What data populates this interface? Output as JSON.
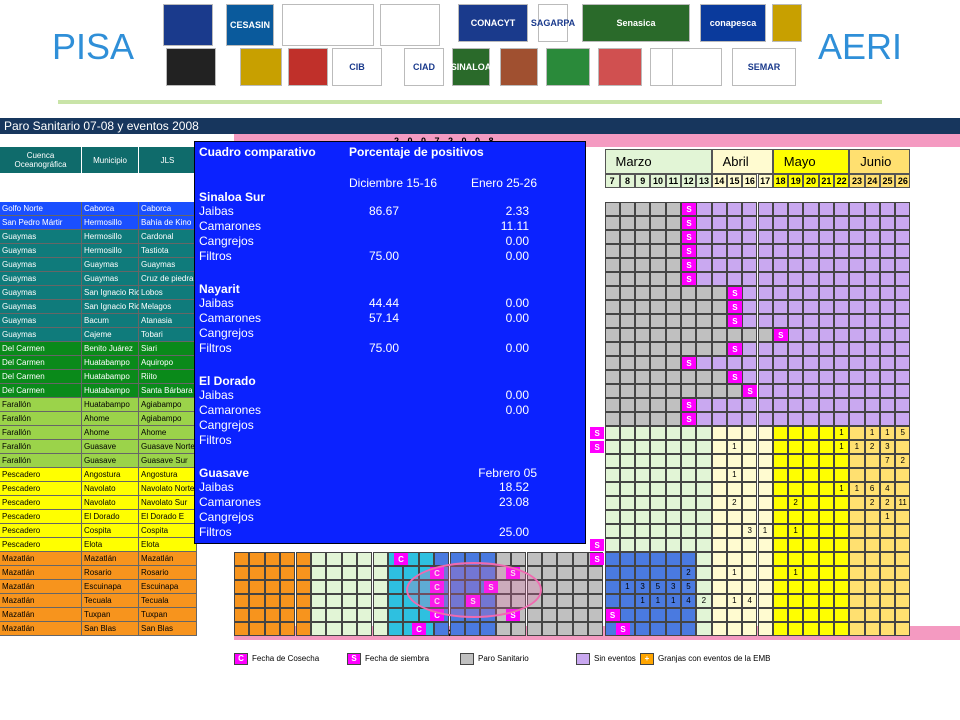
{
  "header": {
    "left_brand": "PISA",
    "right_brand": "AERI"
  },
  "logos": [
    {
      "name": "logo-1",
      "text": ""
    },
    {
      "name": "logo-cesasin",
      "text": "CESASIN"
    },
    {
      "name": "logo-3",
      "text": ""
    },
    {
      "name": "logo-4",
      "text": ""
    },
    {
      "name": "logo-conacyt",
      "text": "CONACYT"
    },
    {
      "name": "logo-sagarpa",
      "text": "SAGARPA"
    },
    {
      "name": "logo-senasica",
      "text": "Senasica"
    },
    {
      "name": "logo-conapesca",
      "text": "conapesca"
    },
    {
      "name": "logo-9",
      "text": ""
    },
    {
      "name": "logo-10",
      "text": ""
    },
    {
      "name": "logo-11",
      "text": ""
    },
    {
      "name": "logo-12",
      "text": ""
    },
    {
      "name": "logo-cib",
      "text": "CIB"
    },
    {
      "name": "logo-ciad",
      "text": "CIAD"
    },
    {
      "name": "logo-sinaloa",
      "text": "SINALOA"
    },
    {
      "name": "logo-16",
      "text": ""
    },
    {
      "name": "logo-17",
      "text": ""
    },
    {
      "name": "logo-18",
      "text": ""
    },
    {
      "name": "logo-19",
      "text": ""
    },
    {
      "name": "logo-20",
      "text": ""
    },
    {
      "name": "logo-semar",
      "text": "SEMAR"
    }
  ],
  "sheet": {
    "title": "Paro Sanitario 07-08 y eventos 2008",
    "year_label": "2 0 0 7 2 0 0 8",
    "col_headers": [
      "Cuenca Oceanográfica",
      "Municipio",
      "JLS"
    ],
    "months": [
      {
        "label": "Marzo",
        "bg": "#e2f5d6"
      },
      {
        "label": "Abril",
        "bg": "#fffbd0"
      },
      {
        "label": "Mayo",
        "bg": "#ffff00"
      },
      {
        "label": "Junio",
        "bg": "#ffe070"
      }
    ],
    "weeks": [
      "7",
      "8",
      "9",
      "10",
      "11",
      "12",
      "13",
      "14",
      "15",
      "16",
      "17",
      "18",
      "19",
      "20",
      "21",
      "22",
      "23",
      "24",
      "25",
      "26"
    ],
    "rows": [
      {
        "c": "Golfo Norte",
        "m": "Caborca",
        "j": "Caborca",
        "color": "#1a4fff",
        "tc": "#fff"
      },
      {
        "c": "San Pedro Mártir",
        "m": "Hermosillo",
        "j": "Bahía de Kino",
        "color": "#1a4fff",
        "tc": "#fff"
      },
      {
        "c": "Guaymas",
        "m": "Hermosillo",
        "j": "Cardonal",
        "color": "#0f7b7b",
        "tc": "#fff"
      },
      {
        "c": "Guaymas",
        "m": "Hermosillo",
        "j": "Tastiota",
        "color": "#0f7b7b",
        "tc": "#fff"
      },
      {
        "c": "Guaymas",
        "m": "Guaymas",
        "j": "Guaymas",
        "color": "#0f7b7b",
        "tc": "#fff"
      },
      {
        "c": "Guaymas",
        "m": "Guaymas",
        "j": "Cruz de piedra",
        "color": "#0f7b7b",
        "tc": "#fff"
      },
      {
        "c": "Guaymas",
        "m": "San Ignacio Rio",
        "j": "Lobos",
        "color": "#0f7b7b",
        "tc": "#fff"
      },
      {
        "c": "Guaymas",
        "m": "San Ignacio Rio",
        "j": "Melagos",
        "color": "#0f7b7b",
        "tc": "#fff"
      },
      {
        "c": "Guaymas",
        "m": "Bacum",
        "j": "Atanasia",
        "color": "#0f7b7b",
        "tc": "#fff"
      },
      {
        "c": "Guaymas",
        "m": "Cajeme",
        "j": "Tobari",
        "color": "#0f7b7b",
        "tc": "#fff"
      },
      {
        "c": "Del Carmen",
        "m": "Benito Juárez",
        "j": "Siari",
        "color": "#0a8a1a",
        "tc": "#fff"
      },
      {
        "c": "Del Carmen",
        "m": "Huatabampo",
        "j": "Aquiropo",
        "color": "#0a8a1a",
        "tc": "#fff"
      },
      {
        "c": "Del Carmen",
        "m": "Huatabampo",
        "j": "Riito",
        "color": "#0a8a1a",
        "tc": "#fff"
      },
      {
        "c": "Del Carmen",
        "m": "Huatabampo",
        "j": "Santa Bárbara",
        "color": "#0a8a1a",
        "tc": "#fff"
      },
      {
        "c": "Farallón",
        "m": "Huatabampo",
        "j": "Agiabampo",
        "color": "#9bd34a",
        "tc": "#000"
      },
      {
        "c": "Farallón",
        "m": "Ahome",
        "j": "Agiabampo",
        "color": "#9bd34a",
        "tc": "#000"
      },
      {
        "c": "Farallón",
        "m": "Ahome",
        "j": "Ahome",
        "color": "#9bd34a",
        "tc": "#000"
      },
      {
        "c": "Farallón",
        "m": "Guasave",
        "j": "Guasave Norte",
        "color": "#9bd34a",
        "tc": "#000"
      },
      {
        "c": "Farallón",
        "m": "Guasave",
        "j": "Guasave Sur",
        "color": "#9bd34a",
        "tc": "#000"
      },
      {
        "c": "Pescadero",
        "m": "Angostura",
        "j": "Angostura",
        "color": "#ffff00",
        "tc": "#000"
      },
      {
        "c": "Pescadero",
        "m": "Navolato",
        "j": "Navolato Norte",
        "color": "#ffff00",
        "tc": "#000"
      },
      {
        "c": "Pescadero",
        "m": "Navolato",
        "j": "Navolato Sur",
        "color": "#ffff00",
        "tc": "#000"
      },
      {
        "c": "Pescadero",
        "m": "El Dorado",
        "j": "El Dorado E",
        "color": "#ffff00",
        "tc": "#000"
      },
      {
        "c": "Pescadero",
        "m": "Cospita",
        "j": "Cospita",
        "color": "#ffff00",
        "tc": "#000"
      },
      {
        "c": "Pescadero",
        "m": "Elota",
        "j": "Elota",
        "color": "#ffff00",
        "tc": "#000"
      },
      {
        "c": "Mazatlán",
        "m": "Mazatlán",
        "j": "Mazatlán",
        "color": "#f7941d",
        "tc": "#000"
      },
      {
        "c": "Mazatlán",
        "m": "Rosario",
        "j": "Rosario",
        "color": "#f7941d",
        "tc": "#000"
      },
      {
        "c": "Mazatlán",
        "m": "Escuinapa",
        "j": "Escuinapa",
        "color": "#f7941d",
        "tc": "#000"
      },
      {
        "c": "Mazatlán",
        "m": "Tecuala",
        "j": "Tecuala",
        "color": "#f7941d",
        "tc": "#000"
      },
      {
        "c": "Mazatlán",
        "m": "Tuxpan",
        "j": "Tuxpan",
        "color": "#f7941d",
        "tc": "#000"
      },
      {
        "c": "Mazatlán",
        "m": "San Blas",
        "j": "San Blas",
        "color": "#f7941d",
        "tc": "#000"
      }
    ],
    "marks": [
      {
        "r": 0,
        "w": 5,
        "t": "S"
      },
      {
        "r": 1,
        "w": 5,
        "t": "S"
      },
      {
        "r": 2,
        "w": 5,
        "t": "S"
      },
      {
        "r": 3,
        "w": 5,
        "t": "S"
      },
      {
        "r": 4,
        "w": 5,
        "t": "S"
      },
      {
        "r": 5,
        "w": 5,
        "t": "S"
      },
      {
        "r": 6,
        "w": 8,
        "t": "S"
      },
      {
        "r": 7,
        "w": 8,
        "t": "S"
      },
      {
        "r": 8,
        "w": 8,
        "t": "S"
      },
      {
        "r": 9,
        "w": 11,
        "t": "S"
      },
      {
        "r": 10,
        "w": 8,
        "t": "S"
      },
      {
        "r": 11,
        "w": 5,
        "t": "S"
      },
      {
        "r": 12,
        "w": 8,
        "t": "S"
      },
      {
        "r": 13,
        "w": 9,
        "t": "S"
      },
      {
        "r": 14,
        "w": 5,
        "t": "S"
      },
      {
        "r": 15,
        "w": 5,
        "t": "S"
      },
      {
        "r": 16,
        "w": -1,
        "t": "S"
      },
      {
        "r": 17,
        "w": -1,
        "t": "S"
      },
      {
        "r": 24,
        "w": -1,
        "t": "S"
      },
      {
        "r": 25,
        "w": -1,
        "t": "S"
      },
      {
        "r": 29,
        "w": 0,
        "t": "S"
      }
    ],
    "numbers": [
      {
        "r": 16,
        "w": 15,
        "t": "1"
      },
      {
        "r": 16,
        "w": 17,
        "t": "1"
      },
      {
        "r": 16,
        "w": 18,
        "t": "1"
      },
      {
        "r": 16,
        "w": 19,
        "t": "5"
      },
      {
        "r": 17,
        "w": 8,
        "t": "1"
      },
      {
        "r": 17,
        "w": 15,
        "t": "1"
      },
      {
        "r": 17,
        "w": 16,
        "t": "1"
      },
      {
        "r": 17,
        "w": 17,
        "t": "2"
      },
      {
        "r": 17,
        "w": 18,
        "t": "3"
      },
      {
        "r": 18,
        "w": 18,
        "t": "7"
      },
      {
        "r": 18,
        "w": 19,
        "t": "2"
      },
      {
        "r": 19,
        "w": 8,
        "t": "1"
      },
      {
        "r": 20,
        "w": 15,
        "t": "1"
      },
      {
        "r": 20,
        "w": 16,
        "t": "1"
      },
      {
        "r": 20,
        "w": 17,
        "t": "6"
      },
      {
        "r": 20,
        "w": 18,
        "t": "4"
      },
      {
        "r": 21,
        "w": 8,
        "t": "2"
      },
      {
        "r": 21,
        "w": 12,
        "t": "2"
      },
      {
        "r": 21,
        "w": 17,
        "t": "2"
      },
      {
        "r": 21,
        "w": 18,
        "t": "2"
      },
      {
        "r": 21,
        "w": 19,
        "t": "11"
      },
      {
        "r": 22,
        "w": 18,
        "t": "1"
      },
      {
        "r": 23,
        "w": 9,
        "t": "3"
      },
      {
        "r": 23,
        "w": 10,
        "t": "1"
      },
      {
        "r": 23,
        "w": 12,
        "t": "1"
      },
      {
        "r": 26,
        "w": 5,
        "t": "2"
      },
      {
        "r": 26,
        "w": 8,
        "t": "1"
      },
      {
        "r": 26,
        "w": 12,
        "t": "1"
      },
      {
        "r": 27,
        "w": 1,
        "t": "1"
      },
      {
        "r": 27,
        "w": 2,
        "t": "3"
      },
      {
        "r": 27,
        "w": 3,
        "t": "5"
      },
      {
        "r": 27,
        "w": 4,
        "t": "3"
      },
      {
        "r": 27,
        "w": 5,
        "t": "5"
      },
      {
        "r": 28,
        "w": 2,
        "t": "1"
      },
      {
        "r": 28,
        "w": 3,
        "t": "1"
      },
      {
        "r": 28,
        "w": 4,
        "t": "1"
      },
      {
        "r": 28,
        "w": 5,
        "t": "4"
      },
      {
        "r": 28,
        "w": 6,
        "t": "2"
      },
      {
        "r": 28,
        "w": 8,
        "t": "1"
      },
      {
        "r": 28,
        "w": 9,
        "t": "4"
      }
    ]
  },
  "overlay": {
    "title": "Cuadro comparativo",
    "subtitle": "Porcentaje de positivos",
    "col1": "Diciembre 15-16",
    "col2": "Enero 25-26",
    "sections": [
      {
        "name": "Sinaloa Sur",
        "rows": [
          [
            "Jaibas",
            "86.67",
            "2.33"
          ],
          [
            "Camarones",
            "",
            "11.11"
          ],
          [
            "Cangrejos",
            "",
            "0.00"
          ],
          [
            "Filtros",
            "75.00",
            "0.00"
          ]
        ]
      },
      {
        "name": "Nayarit",
        "rows": [
          [
            "Jaibas",
            "44.44",
            "0.00"
          ],
          [
            "Camarones",
            "57.14",
            "0.00"
          ],
          [
            "Cangrejos",
            "",
            ""
          ],
          [
            "Filtros",
            "75.00",
            "0.00"
          ]
        ]
      },
      {
        "name": "El Dorado",
        "rows": [
          [
            "Jaibas",
            "",
            "0.00"
          ],
          [
            "Camarones",
            "",
            "0.00"
          ],
          [
            "Cangrejos",
            "",
            ""
          ],
          [
            "Filtros",
            "",
            ""
          ]
        ]
      },
      {
        "name": "Guasave",
        "extra": "Febrero 05",
        "rows": [
          [
            "Jaibas",
            "",
            "18.52"
          ],
          [
            "Camarones",
            "",
            "23.08"
          ],
          [
            "Cangrejos",
            "",
            ""
          ],
          [
            "Filtros",
            "",
            "25.00"
          ]
        ]
      }
    ]
  },
  "legend": [
    {
      "box": "C",
      "box_color": "#ff00ff",
      "label": "Fecha de Cosecha"
    },
    {
      "box": "S",
      "box_color": "#ff00ff",
      "label": "Fecha de siembra"
    },
    {
      "box": "",
      "box_color": "#c0c0c0",
      "label": "Paro Sanitario"
    },
    {
      "box": "",
      "box_color": "#c9a8f0",
      "label": "Sin eventos"
    },
    {
      "box": "+",
      "box_color": "#ffa500",
      "label": "Granjas con eventos de la EMB"
    }
  ],
  "colors": {
    "paro": "#c0c0c0",
    "sin_eventos": "#c9a8f0",
    "mark": "#ff00ff"
  }
}
